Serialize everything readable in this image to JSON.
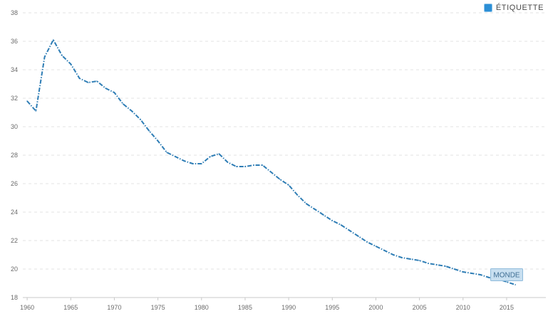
{
  "legend": {
    "label": "ÉTIQUETTE",
    "swatch_color": "#2c8fd6"
  },
  "chart_data": {
    "type": "line",
    "title": "",
    "xlabel": "",
    "ylabel": "",
    "x": [
      1960,
      1961,
      1962,
      1963,
      1964,
      1965,
      1966,
      1967,
      1968,
      1969,
      1970,
      1971,
      1972,
      1973,
      1974,
      1975,
      1976,
      1977,
      1978,
      1979,
      1980,
      1981,
      1982,
      1983,
      1984,
      1985,
      1986,
      1987,
      1988,
      1989,
      1990,
      1991,
      1992,
      1993,
      1994,
      1995,
      1996,
      1997,
      1998,
      1999,
      2000,
      2001,
      2002,
      2003,
      2004,
      2005,
      2006,
      2007,
      2008,
      2009,
      2010,
      2011,
      2012,
      2013,
      2014,
      2015,
      2016
    ],
    "series": [
      {
        "name": "MONDE",
        "color": "#2e7db5",
        "line_style": "dash-dot",
        "values": [
          31.8,
          31.1,
          34.9,
          36.1,
          35.0,
          34.4,
          33.4,
          33.1,
          33.2,
          32.7,
          32.4,
          31.6,
          31.1,
          30.5,
          29.7,
          29.0,
          28.2,
          27.9,
          27.6,
          27.4,
          27.4,
          27.9,
          28.1,
          27.5,
          27.2,
          27.2,
          27.3,
          27.3,
          26.8,
          26.3,
          25.9,
          25.2,
          24.6,
          24.2,
          23.8,
          23.4,
          23.1,
          22.7,
          22.3,
          21.9,
          21.6,
          21.3,
          21.0,
          20.8,
          20.7,
          20.6,
          20.4,
          20.3,
          20.2,
          20.0,
          19.8,
          19.7,
          19.6,
          19.4,
          19.3,
          19.1,
          18.9
        ]
      }
    ],
    "x_ticks": [
      "1960",
      "1965",
      "1970",
      "1975",
      "1980",
      "1985",
      "1990",
      "1995",
      "2000",
      "2005",
      "2010",
      "2015"
    ],
    "y_ticks": [
      "18",
      "20",
      "22",
      "24",
      "26",
      "28",
      "30",
      "32",
      "34",
      "36",
      "38"
    ],
    "xlim": [
      1959.5,
      2019.5
    ],
    "ylim": [
      18,
      38
    ],
    "grid": true,
    "legend_position": "top-right",
    "annotations": [
      {
        "text": "MONDE",
        "x": 2015,
        "y": 19.6
      }
    ]
  }
}
